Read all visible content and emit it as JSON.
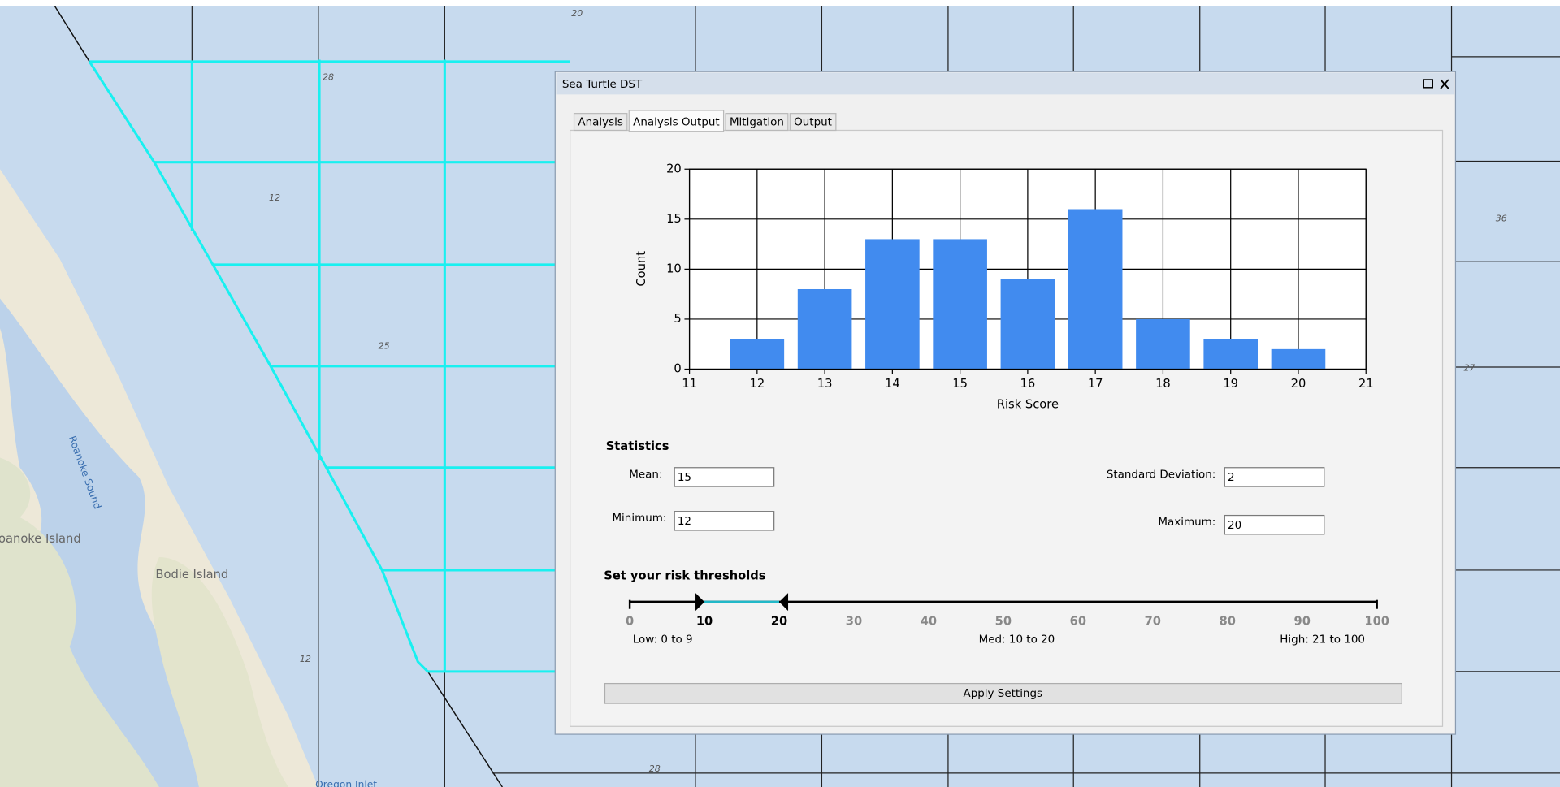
{
  "map": {
    "labels": [
      "20",
      "28",
      "12",
      "25",
      "12",
      "36",
      "27",
      "28",
      "Roanoke Sound",
      "Roanoke Island",
      "Bodie Island",
      "Oregon Inlet"
    ]
  },
  "window": {
    "title": "Sea Turtle DST"
  },
  "tabs": [
    "Analysis",
    "Analysis Output",
    "Mitigation",
    "Output"
  ],
  "chart_data": {
    "type": "bar",
    "x_label": "Risk Score",
    "y_label": "Count",
    "x": [
      12,
      13,
      14,
      15,
      16,
      17,
      18,
      19,
      20
    ],
    "values": [
      3,
      8,
      13,
      13,
      9,
      16,
      5,
      3,
      2
    ],
    "color": "#418bef",
    "xlim": [
      11,
      21
    ],
    "xticks": [
      11,
      12,
      13,
      14,
      15,
      16,
      17,
      18,
      19,
      20,
      21
    ],
    "ylim": [
      0,
      20
    ],
    "yticks": [
      0,
      5,
      10,
      15,
      20
    ],
    "grid": true
  },
  "statistics": {
    "title": "Statistics",
    "mean": {
      "label": "Mean:",
      "value": 15
    },
    "std": {
      "label": "Standard Deviation:",
      "value": 2
    },
    "min": {
      "label": "Minimum:",
      "value": 12
    },
    "max": {
      "label": "Maximum:",
      "value": 20
    }
  },
  "thresholds": {
    "title": "Set your risk thresholds",
    "ticks": [
      0,
      10,
      20,
      30,
      40,
      50,
      60,
      70,
      80,
      90,
      100
    ],
    "low": 10,
    "high": 20,
    "low_label": "Low: 0 to 9",
    "med_label": "Med: 10 to 20",
    "high_label": "High: 21 to 100"
  },
  "button": "Apply Settings"
}
